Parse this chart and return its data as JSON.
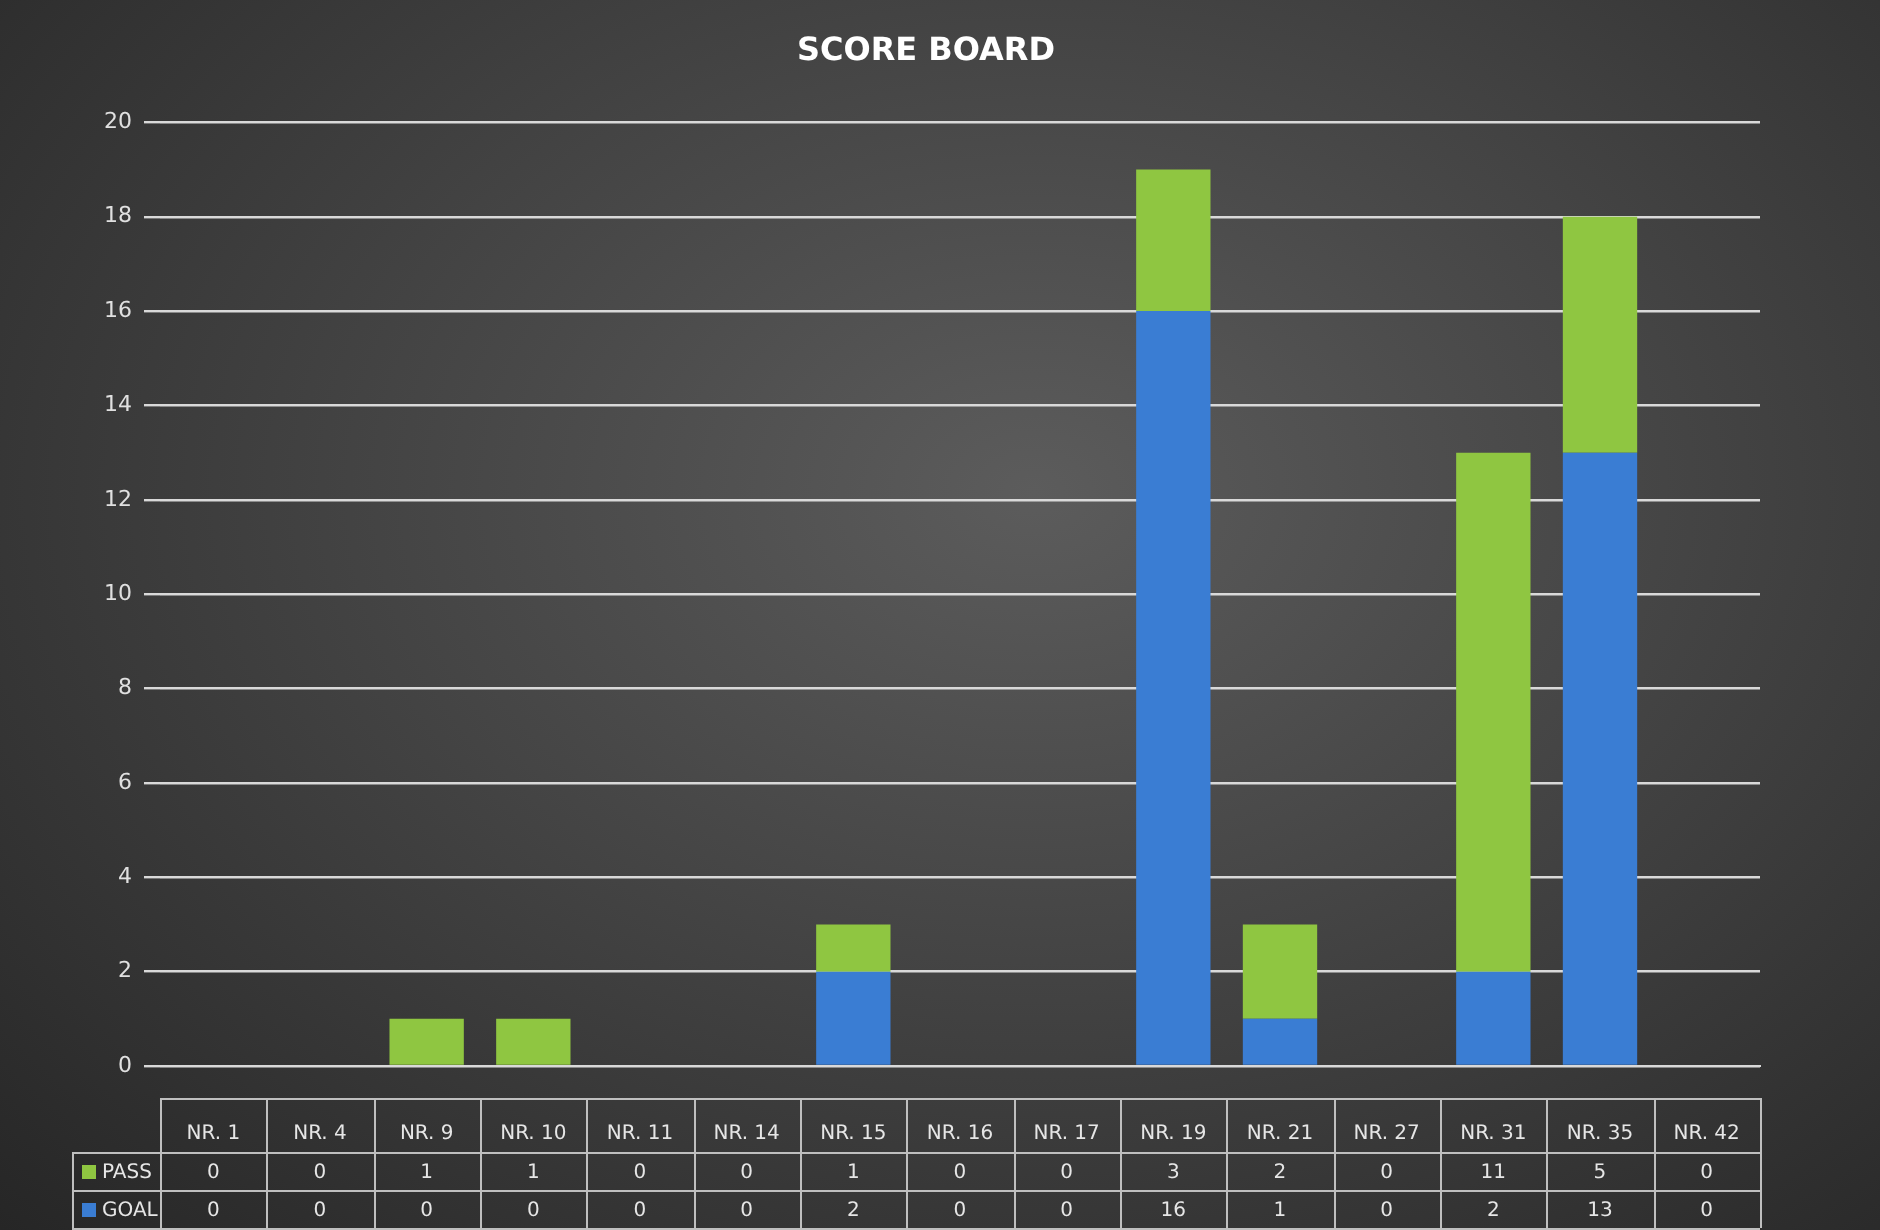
{
  "chart_data": {
    "type": "bar",
    "title": "SCORE BOARD",
    "categories": [
      "NR. 1",
      "NR. 4",
      "NR. 9",
      "NR. 10",
      "NR. 11",
      "NR. 14",
      "NR. 15",
      "NR. 16",
      "NR. 17",
      "NR. 19",
      "NR. 21",
      "NR. 27",
      "NR. 31",
      "NR. 35",
      "NR. 42"
    ],
    "series": [
      {
        "name": "GOAL",
        "color": "#3a7dd3",
        "values": [
          0,
          0,
          0,
          0,
          0,
          0,
          2,
          0,
          0,
          16,
          1,
          0,
          2,
          13,
          0
        ]
      },
      {
        "name": "PASS",
        "color": "#8fc641",
        "values": [
          0,
          0,
          1,
          1,
          0,
          0,
          1,
          0,
          0,
          3,
          2,
          0,
          11,
          5,
          0
        ]
      }
    ],
    "stacked": true,
    "ylim": [
      0,
      20
    ],
    "yticks": [
      0,
      2,
      4,
      6,
      8,
      10,
      12,
      14,
      16,
      18,
      20
    ],
    "grid": "y",
    "legend": "bottom",
    "data_labels": true
  }
}
